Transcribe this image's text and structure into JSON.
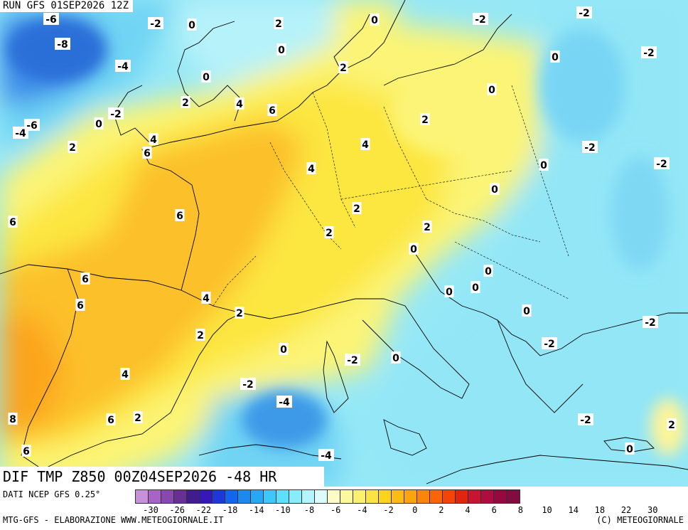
{
  "map": {
    "run_title": "RUN GFS 01SEP2026 12Z",
    "field_title": "DIF TMP Z850 00Z04SEP2026 -48 HR",
    "labels": [
      "-6",
      "-2",
      "0",
      "2",
      "0",
      "-2",
      "-2",
      "-8",
      "0",
      "-2",
      "-4",
      "0",
      "2",
      "0",
      "0",
      "-2",
      "4",
      "6",
      "0",
      "-6",
      "-4",
      "2",
      "4",
      "2",
      "6",
      "-2",
      "0",
      "-2",
      "4",
      "2",
      "6",
      "0",
      "4",
      "2",
      "2",
      "6",
      "2",
      "0",
      "0",
      "0",
      "6",
      "0",
      "6",
      "4",
      "-2",
      "2",
      "2",
      "0",
      "-2",
      "-2",
      "0",
      "4",
      "-2",
      "-4",
      "0",
      "8",
      "6",
      "2",
      "-2",
      "2",
      "-4",
      "0",
      "6"
    ],
    "color_scale": [
      "#c890d8",
      "#a864c4",
      "#8848b0",
      "#683090",
      "#401c8c",
      "#3418b8",
      "#1c38d8",
      "#1464f0",
      "#1c88f0",
      "#28a8f4",
      "#3cc8f8",
      "#5ce0fc",
      "#88ecfc",
      "#b4f4fc",
      "#dcfcfc",
      "#fcfcc8",
      "#fcf8a0",
      "#fcf070",
      "#fce440",
      "#fcd41c",
      "#fcbc14",
      "#fca40c",
      "#fc8408",
      "#fc6408",
      "#f44408",
      "#e02410",
      "#c81430",
      "#b00c40",
      "#980840",
      "#800c40"
    ],
    "terrain": {
      "cold_atlantic": "#3c8ce8",
      "cool_atlantic": "#70d4f4",
      "cool_east": "#8ee6f6",
      "warm_core": "#fbe34a",
      "hot_core": "#fcb834"
    }
  },
  "legend": {
    "ticks": [
      "-30",
      "-26",
      "-22",
      "-18",
      "-14",
      "-10",
      "-8",
      "-6",
      "-4",
      "-2",
      "0",
      "2",
      "4",
      "6",
      "8",
      "10",
      "14",
      "18",
      "22",
      "30"
    ]
  },
  "footer": {
    "data_source": "DATI NCEP GFS 0.25°",
    "producer": "MTG-GFS - ELABORAZIONE WWW.METEOGIORNALE.IT",
    "copyright": "(C) METEOGIORNALE"
  }
}
